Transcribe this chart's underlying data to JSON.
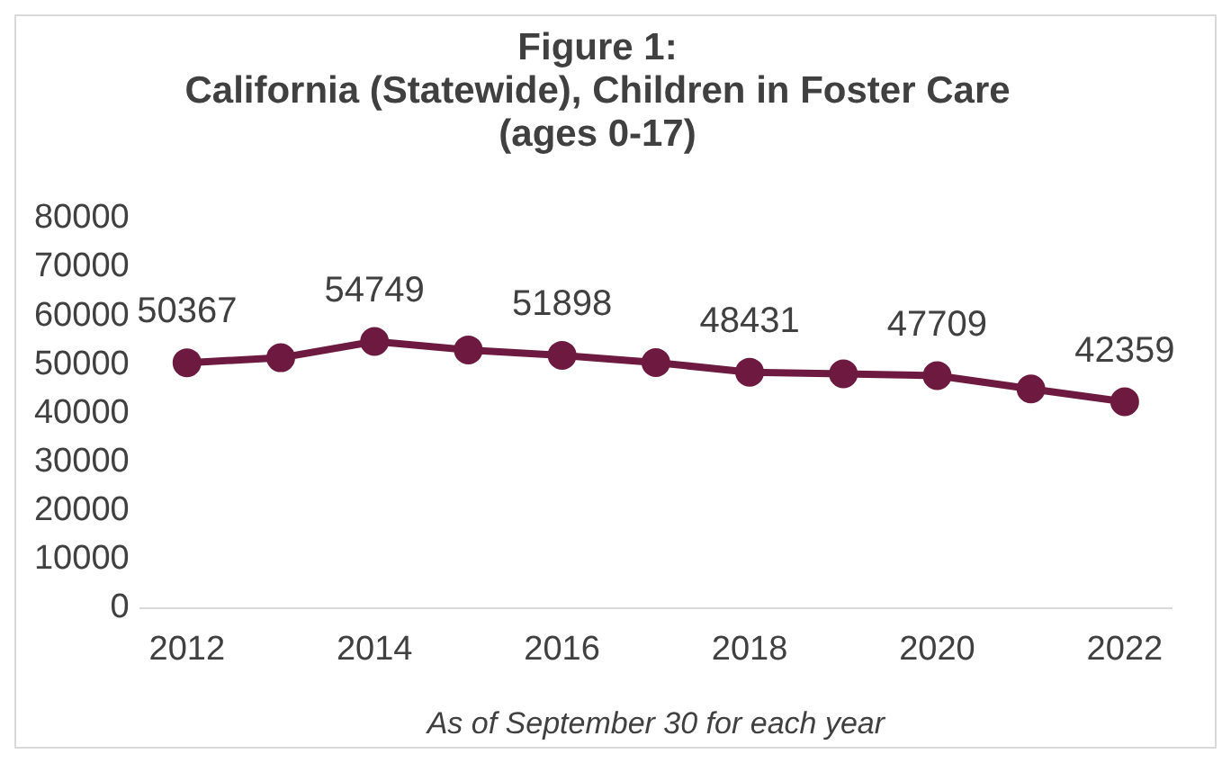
{
  "chart_data": {
    "type": "line",
    "title": "Figure 1:\nCalifornia (Statewide), Children in Foster Care\n(ages 0-17)",
    "xlabel": "As of September 30 for each year",
    "categories": [
      "2012",
      null,
      "2014",
      null,
      "2016",
      null,
      "2018",
      null,
      "2020",
      null,
      "2022"
    ],
    "series": [
      {
        "color": "#6e1a40",
        "values": [
          50367,
          51400,
          54749,
          53000,
          51898,
          50400,
          48431,
          48100,
          47709,
          45000,
          42359
        ],
        "value_labels": [
          "50367",
          null,
          "54749",
          null,
          "51898",
          null,
          "48431",
          null,
          "47709",
          null,
          "42359"
        ]
      }
    ],
    "ylim": [
      0,
      80000
    ],
    "yticks": [
      0,
      10000,
      20000,
      30000,
      40000,
      50000,
      60000,
      70000,
      80000
    ],
    "grid": false,
    "legend": false,
    "marker": "circle",
    "line_style": "solid"
  }
}
